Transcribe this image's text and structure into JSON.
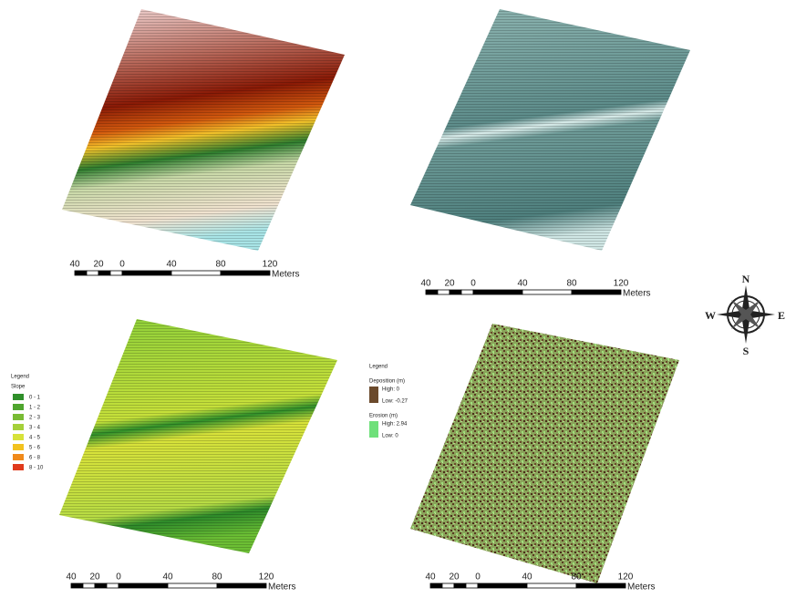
{
  "panels": [
    {
      "scale": {
        "labels": [
          40,
          20,
          0,
          40,
          80,
          120
        ],
        "unit": "Meters"
      }
    },
    {
      "scale": {
        "labels": [
          40,
          20,
          0,
          40,
          80,
          120
        ],
        "unit": "Meters"
      }
    },
    {
      "scale": {
        "labels": [
          40,
          20,
          0,
          40,
          80,
          120
        ],
        "unit": "Meters"
      },
      "legend": {
        "title": "Legend",
        "field": "Slope",
        "classes": [
          "0 - 1",
          "1 - 2",
          "2 - 3",
          "3 - 4",
          "4 - 5",
          "5 - 6",
          "6 - 8",
          "8 - 10"
        ]
      }
    },
    {
      "scale": {
        "labels": [
          40,
          20,
          0,
          40,
          80,
          120
        ],
        "unit": "Meters"
      },
      "legend": {
        "title": "Legend",
        "deposition": {
          "label": "Deposition (m)",
          "high": "High: 0",
          "low": "Low: -0.27"
        },
        "erosion": {
          "label": "Erosion (m)",
          "high": "High: 2.94",
          "low": "Low: 0"
        }
      }
    }
  ],
  "compass": {
    "n": "N",
    "s": "S",
    "e": "E",
    "w": "W"
  }
}
